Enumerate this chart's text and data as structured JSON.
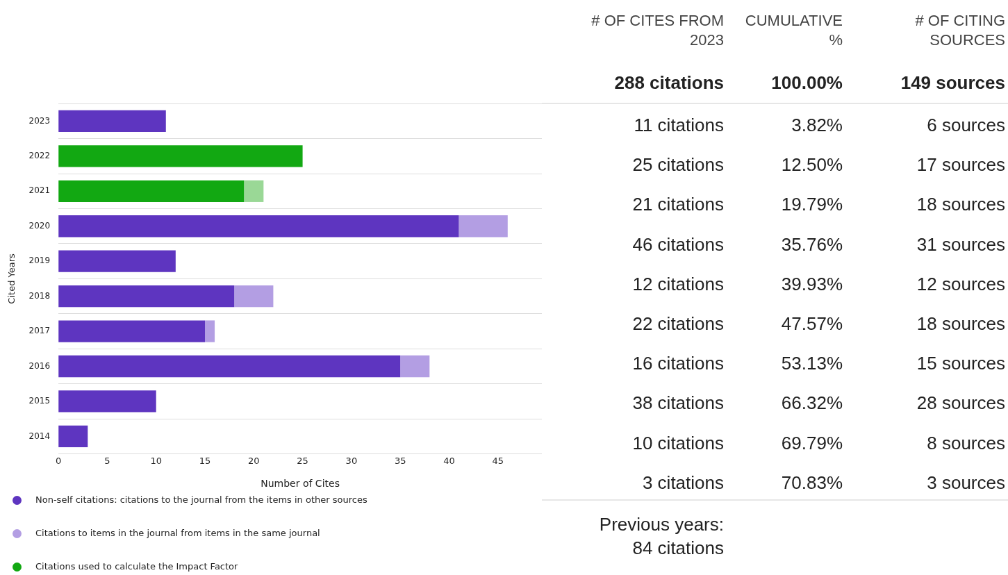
{
  "chart_data": [
    {
      "type": "bar",
      "orientation": "horizontal",
      "stacked": true,
      "xlabel": "Number of Cites",
      "ylabel": "Cited Years",
      "categories": [
        "2023",
        "2022",
        "2021",
        "2020",
        "2019",
        "2018",
        "2017",
        "2016",
        "2015",
        "2014"
      ],
      "series": [
        {
          "name": "Non-self citations: citations to the journal from the items in other sources",
          "color": "#5e35c0",
          "values": [
            11,
            null,
            null,
            41,
            12,
            18,
            15,
            35,
            10,
            3
          ]
        },
        {
          "name": "Citations to items in the journal from items in the same journal",
          "color": "#b39ee3",
          "values": [
            null,
            null,
            null,
            5,
            null,
            4,
            1,
            3,
            null,
            null
          ]
        },
        {
          "name": "Citations used to calculate the Impact Factor",
          "color": "#12a812",
          "values": [
            null,
            25,
            19,
            null,
            null,
            null,
            null,
            null,
            null,
            null
          ]
        },
        {
          "color": "#9ad896",
          "values": [
            null,
            null,
            2,
            null,
            null,
            null,
            null,
            null,
            null,
            null
          ]
        }
      ],
      "xlim": [
        0,
        49.5
      ],
      "xticks": [
        0,
        5,
        10,
        15,
        20,
        25,
        30,
        35,
        40,
        45
      ],
      "grid": "y",
      "legend": "bottom"
    },
    {
      "type": "other",
      "categories": [
        "# OF CITES FROM 2023",
        "CUMULATIVE %",
        "# OF CITING SOURCES"
      ],
      "cell_labels": [
        [
          "288 citations",
          "100.00%",
          "149 sources"
        ],
        [
          "11 citations",
          "3.82%",
          "6 sources"
        ],
        [
          "25 citations",
          "12.50%",
          "17 sources"
        ],
        [
          "21 citations",
          "19.79%",
          "18 sources"
        ],
        [
          "46 citations",
          "35.76%",
          "31 sources"
        ],
        [
          "12 citations",
          "39.93%",
          "12 sources"
        ],
        [
          "22 citations",
          "47.57%",
          "18 sources"
        ],
        [
          "16 citations",
          "53.13%",
          "15 sources"
        ],
        [
          "38 citations",
          "66.32%",
          "28 sources"
        ],
        [
          "10 citations",
          "69.79%",
          "8 sources"
        ],
        [
          "3 citations",
          "70.83%",
          "3 sources"
        ]
      ],
      "annotations": [
        "Previous years: 84 citations"
      ]
    }
  ]
}
